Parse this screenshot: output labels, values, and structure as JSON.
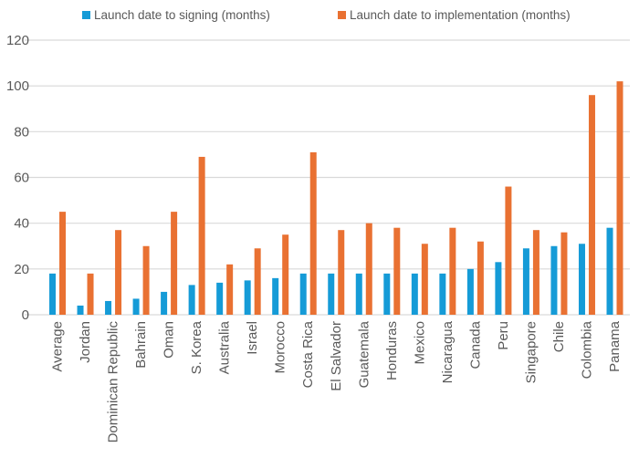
{
  "chart_data": {
    "type": "bar",
    "title": "",
    "xlabel": "",
    "ylabel": "",
    "ylim": [
      0,
      120
    ],
    "yticks": [
      0,
      20,
      40,
      60,
      80,
      100,
      120
    ],
    "grid": true,
    "legend_position": "top",
    "categories": [
      "Average",
      "Jordan",
      "Dominican Republic",
      "Bahrain",
      "Oman",
      "S. Korea",
      "Australia",
      "Israel",
      "Morocco",
      "Costa Rica",
      "El Salvador",
      "Guatemala",
      "Honduras",
      "Mexico",
      "Nicaragua",
      "Canada",
      "Peru",
      "Singapore",
      "Chile",
      "Colombia",
      "Panama"
    ],
    "series": [
      {
        "name": "Launch date to signing (months)",
        "color": "#159BD7",
        "values": [
          18,
          4,
          6,
          7,
          10,
          13,
          14,
          15,
          16,
          18,
          18,
          18,
          18,
          18,
          18,
          20,
          23,
          29,
          30,
          31,
          38
        ]
      },
      {
        "name": "Launch date to implementation (months)",
        "color": "#E97132",
        "values": [
          45,
          18,
          37,
          30,
          45,
          69,
          22,
          29,
          35,
          71,
          37,
          40,
          38,
          31,
          38,
          32,
          56,
          37,
          36,
          96,
          102
        ]
      }
    ]
  }
}
